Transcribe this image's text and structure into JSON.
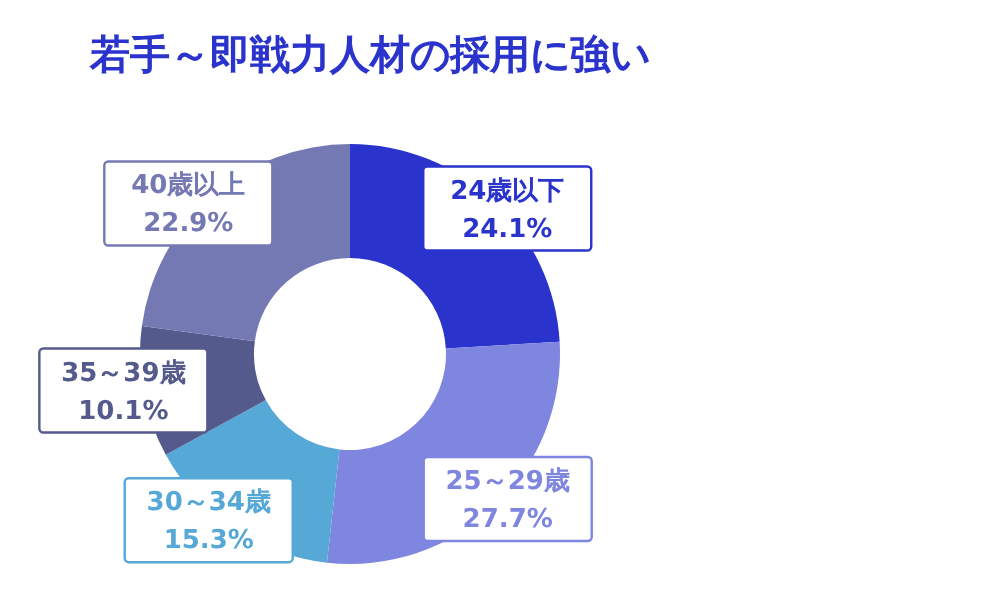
{
  "chart_data": {
    "type": "donut",
    "title": "若手～即戦力人材の採用に強い",
    "categories": [
      "24歳以下",
      "25～29歳",
      "30～34歳",
      "35～39歳",
      "40歳以上"
    ],
    "values": [
      24.1,
      27.7,
      15.3,
      10.1,
      22.9
    ],
    "value_labels": [
      "24.1%",
      "27.7%",
      "15.3%",
      "10.1%",
      "22.9%"
    ],
    "colors": [
      "#2a33cc",
      "#7f86df",
      "#56a8d6",
      "#555a8c",
      "#7479b3"
    ],
    "legend": false
  }
}
